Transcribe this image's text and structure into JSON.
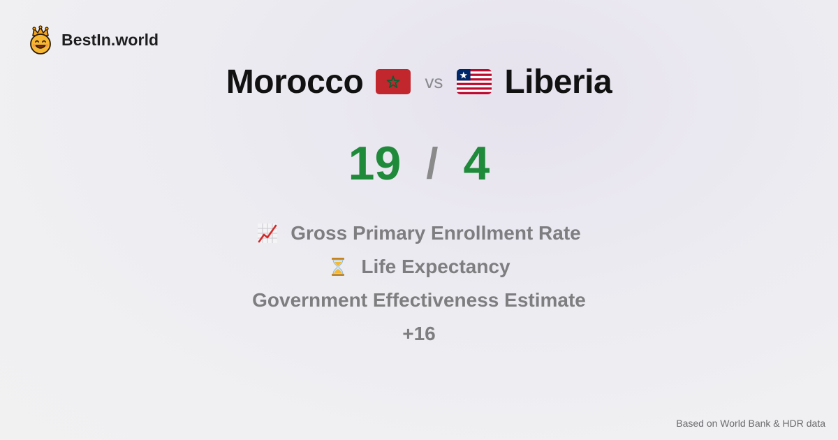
{
  "brand": {
    "name": "BestIn.world",
    "logo_icon": "crowned-smiley-icon"
  },
  "comparison": {
    "left_country": "Morocco",
    "left_flag_icon": "morocco-flag-icon",
    "vs_label": "vs",
    "right_country": "Liberia",
    "right_flag_icon": "liberia-flag-icon"
  },
  "score": {
    "left": "19",
    "separator": "/",
    "right": "4",
    "color": "#1e8a3a"
  },
  "metrics": [
    {
      "icon": "chart-increasing-icon",
      "label": "Gross Primary Enrollment Rate"
    },
    {
      "icon": "hourglass-icon",
      "label": "Life Expectancy"
    },
    {
      "icon": "",
      "label": "Government Effectiveness Estimate"
    }
  ],
  "more_label": "+16",
  "footer": {
    "source": "Based on World Bank & HDR data"
  }
}
